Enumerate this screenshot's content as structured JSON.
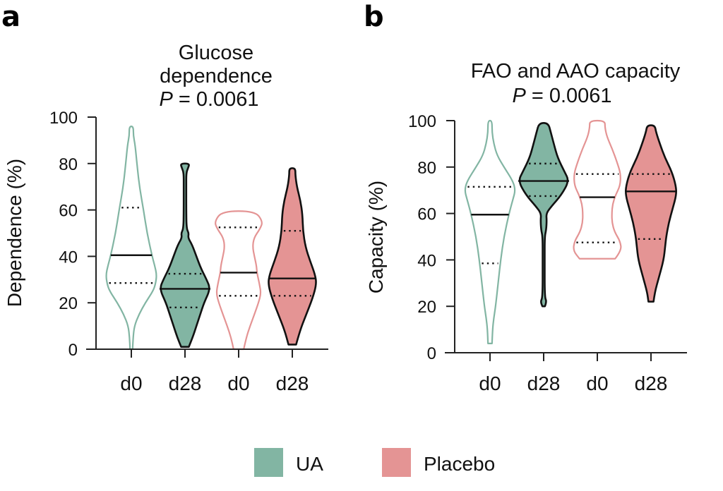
{
  "figure": {
    "legend": [
      {
        "label": "UA",
        "color": "#82b5a3"
      },
      {
        "label": "Placebo",
        "color": "#e49494"
      }
    ]
  },
  "chart_data": [
    {
      "panel": "a",
      "type": "violin",
      "title_lines": [
        "Glucose",
        "dependence"
      ],
      "p_label": "P",
      "p_value": "= 0.0061",
      "xlabel": "",
      "ylabel": "Dependence (%)",
      "ylim": [
        0,
        100
      ],
      "yticks": [
        "0",
        "20",
        "40",
        "60",
        "80",
        "100"
      ],
      "categories": [
        "d0",
        "d28",
        "d0",
        "d28"
      ],
      "series": [
        {
          "group": "UA",
          "timepoint": "d0",
          "filled": false,
          "min": 0,
          "max": 96,
          "median": 40.5,
          "q1": 28.5,
          "q3": 61,
          "profile": [
            [
              0,
              0.05
            ],
            [
              5,
              0.07
            ],
            [
              10,
              0.12
            ],
            [
              15,
              0.3
            ],
            [
              20,
              0.55
            ],
            [
              25,
              0.85
            ],
            [
              28,
              0.95
            ],
            [
              32,
              1.0
            ],
            [
              36,
              0.92
            ],
            [
              40,
              0.82
            ],
            [
              50,
              0.62
            ],
            [
              60,
              0.48
            ],
            [
              70,
              0.32
            ],
            [
              80,
              0.22
            ],
            [
              88,
              0.15
            ],
            [
              92,
              0.08
            ],
            [
              96,
              0.08
            ]
          ]
        },
        {
          "group": "UA",
          "timepoint": "d28",
          "filled": true,
          "min": 1,
          "max": 80,
          "median": 26,
          "q1": 18,
          "q3": 32.5,
          "profile": [
            [
              1,
              0.15
            ],
            [
              5,
              0.3
            ],
            [
              10,
              0.45
            ],
            [
              15,
              0.6
            ],
            [
              20,
              0.75
            ],
            [
              26,
              1.0
            ],
            [
              30,
              0.85
            ],
            [
              35,
              0.62
            ],
            [
              40,
              0.45
            ],
            [
              45,
              0.28
            ],
            [
              48,
              0.12
            ],
            [
              50,
              0.15
            ],
            [
              52,
              0.06
            ],
            [
              60,
              0.05
            ],
            [
              70,
              0.05
            ],
            [
              76,
              0.05
            ],
            [
              78,
              0.12
            ],
            [
              80,
              0.18
            ]
          ]
        },
        {
          "group": "Placebo",
          "timepoint": "d0",
          "filled": false,
          "min": 0,
          "max": 59.5,
          "median": 33,
          "q1": 23,
          "q3": 52.5,
          "profile": [
            [
              0,
              0.2
            ],
            [
              5,
              0.3
            ],
            [
              10,
              0.45
            ],
            [
              15,
              0.62
            ],
            [
              20,
              0.78
            ],
            [
              24,
              0.88
            ],
            [
              28,
              0.82
            ],
            [
              33,
              0.72
            ],
            [
              36,
              0.7
            ],
            [
              40,
              0.62
            ],
            [
              44,
              0.55
            ],
            [
              48,
              0.6
            ],
            [
              52,
              0.85
            ],
            [
              55,
              0.95
            ],
            [
              59.5,
              0.65
            ]
          ]
        },
        {
          "group": "Placebo",
          "timepoint": "d28",
          "filled": true,
          "min": 2,
          "max": 78,
          "median": 30.5,
          "q1": 23,
          "q3": 51,
          "profile": [
            [
              2,
              0.15
            ],
            [
              8,
              0.3
            ],
            [
              15,
              0.55
            ],
            [
              22,
              0.8
            ],
            [
              28,
              0.95
            ],
            [
              32,
              0.9
            ],
            [
              38,
              0.7
            ],
            [
              44,
              0.52
            ],
            [
              51,
              0.42
            ],
            [
              58,
              0.4
            ],
            [
              64,
              0.32
            ],
            [
              70,
              0.18
            ],
            [
              75,
              0.12
            ],
            [
              78,
              0.12
            ]
          ]
        }
      ]
    },
    {
      "panel": "b",
      "type": "violin",
      "title_lines": [
        "FAO and AAO capacity"
      ],
      "p_label": "P",
      "p_value": "= 0.0061",
      "xlabel": "",
      "ylabel": "Capacity (%)",
      "ylim": [
        0,
        100
      ],
      "yticks": [
        "0",
        "20",
        "40",
        "60",
        "80",
        "100"
      ],
      "categories": [
        "d0",
        "d28",
        "d0",
        "d28"
      ],
      "series": [
        {
          "group": "UA",
          "timepoint": "d0",
          "filled": false,
          "min": 4,
          "max": 100,
          "median": 59.5,
          "q1": 38.5,
          "q3": 71.5,
          "profile": [
            [
              4,
              0.08
            ],
            [
              10,
              0.1
            ],
            [
              15,
              0.15
            ],
            [
              20,
              0.22
            ],
            [
              30,
              0.32
            ],
            [
              40,
              0.42
            ],
            [
              50,
              0.55
            ],
            [
              60,
              0.75
            ],
            [
              66,
              0.9
            ],
            [
              70,
              1.0
            ],
            [
              74,
              0.9
            ],
            [
              80,
              0.55
            ],
            [
              85,
              0.28
            ],
            [
              90,
              0.15
            ],
            [
              95,
              0.08
            ],
            [
              100,
              0.08
            ]
          ]
        },
        {
          "group": "UA",
          "timepoint": "d28",
          "filled": true,
          "min": 20,
          "max": 99,
          "median": 74,
          "q1": 67.5,
          "q3": 81.5,
          "profile": [
            [
              20,
              0.05
            ],
            [
              22,
              0.12
            ],
            [
              24,
              0.04
            ],
            [
              40,
              0.04
            ],
            [
              50,
              0.04
            ],
            [
              53,
              0.1
            ],
            [
              57,
              0.12
            ],
            [
              60,
              0.1
            ],
            [
              63,
              0.3
            ],
            [
              68,
              0.7
            ],
            [
              74,
              1.0
            ],
            [
              78,
              0.82
            ],
            [
              84,
              0.55
            ],
            [
              90,
              0.4
            ],
            [
              95,
              0.28
            ],
            [
              99,
              0.18
            ]
          ]
        },
        {
          "group": "Placebo",
          "timepoint": "d0",
          "filled": false,
          "min": 40.5,
          "max": 100,
          "median": 67,
          "q1": 47.5,
          "q3": 77,
          "profile": [
            [
              40.5,
              0.7
            ],
            [
              44,
              0.95
            ],
            [
              48,
              0.9
            ],
            [
              52,
              0.68
            ],
            [
              56,
              0.58
            ],
            [
              60,
              0.57
            ],
            [
              64,
              0.6
            ],
            [
              68,
              0.72
            ],
            [
              72,
              0.9
            ],
            [
              77,
              0.92
            ],
            [
              82,
              0.78
            ],
            [
              88,
              0.58
            ],
            [
              93,
              0.38
            ],
            [
              97,
              0.3
            ],
            [
              100,
              0.3
            ]
          ]
        },
        {
          "group": "Placebo",
          "timepoint": "d28",
          "filled": true,
          "min": 22,
          "max": 98,
          "median": 69.5,
          "q1": 49,
          "q3": 77,
          "profile": [
            [
              22,
              0.1
            ],
            [
              26,
              0.15
            ],
            [
              32,
              0.3
            ],
            [
              40,
              0.5
            ],
            [
              46,
              0.56
            ],
            [
              50,
              0.6
            ],
            [
              56,
              0.7
            ],
            [
              62,
              0.85
            ],
            [
              68,
              1.0
            ],
            [
              72,
              0.98
            ],
            [
              78,
              0.82
            ],
            [
              84,
              0.55
            ],
            [
              90,
              0.35
            ],
            [
              95,
              0.2
            ],
            [
              98,
              0.15
            ]
          ]
        }
      ]
    }
  ]
}
